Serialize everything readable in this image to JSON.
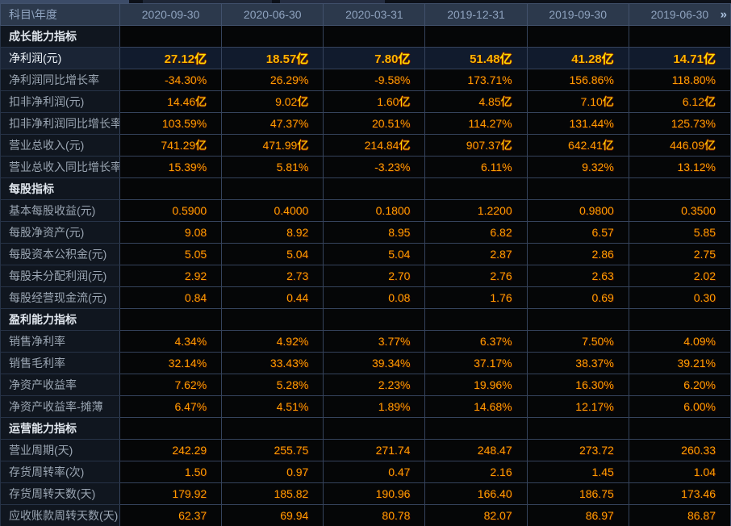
{
  "colors": {
    "header_bg": "#2c394c",
    "value_orange": "#ff9d00",
    "value_bold": "#ffb400",
    "unit_yellow": "#ffdf00",
    "highlight_row_bg": "#111b2d"
  },
  "table": {
    "corner_label": "科目\\年度",
    "more_icon": "»",
    "columns": [
      "2020-09-30",
      "2020-06-30",
      "2020-03-31",
      "2019-12-31",
      "2019-09-30",
      "2019-06-30"
    ],
    "rows": [
      {
        "type": "section",
        "label": "成长能力指标",
        "values": [
          "",
          "",
          "",
          "",
          "",
          ""
        ]
      },
      {
        "type": "data",
        "label": "净利润(元)",
        "highlight": true,
        "values": [
          "27.12亿",
          "18.57亿",
          "7.80亿",
          "51.48亿",
          "41.28亿",
          "14.71亿"
        ]
      },
      {
        "type": "data",
        "label": "净利润同比增长率",
        "values": [
          "-34.30%",
          "26.29%",
          "-9.58%",
          "173.71%",
          "156.86%",
          "118.80%"
        ]
      },
      {
        "type": "data",
        "label": "扣非净利润(元)",
        "values": [
          "14.46亿",
          "9.02亿",
          "1.60亿",
          "4.85亿",
          "7.10亿",
          "6.12亿"
        ]
      },
      {
        "type": "data",
        "label": "扣非净利润同比增长率",
        "values": [
          "103.59%",
          "47.37%",
          "20.51%",
          "114.27%",
          "131.44%",
          "125.73%"
        ]
      },
      {
        "type": "data",
        "label": "营业总收入(元)",
        "values": [
          "741.29亿",
          "471.99亿",
          "214.84亿",
          "907.37亿",
          "642.41亿",
          "446.09亿"
        ]
      },
      {
        "type": "data",
        "label": "营业总收入同比增长率",
        "values": [
          "15.39%",
          "5.81%",
          "-3.23%",
          "6.11%",
          "9.32%",
          "13.12%"
        ]
      },
      {
        "type": "section",
        "label": "每股指标",
        "values": [
          "",
          "",
          "",
          "",
          "",
          ""
        ]
      },
      {
        "type": "data",
        "label": "基本每股收益(元)",
        "values": [
          "0.5900",
          "0.4000",
          "0.1800",
          "1.2200",
          "0.9800",
          "0.3500"
        ]
      },
      {
        "type": "data",
        "label": "每股净资产(元)",
        "values": [
          "9.08",
          "8.92",
          "8.95",
          "6.82",
          "6.57",
          "5.85"
        ]
      },
      {
        "type": "data",
        "label": "每股资本公积金(元)",
        "values": [
          "5.05",
          "5.04",
          "5.04",
          "2.87",
          "2.86",
          "2.75"
        ]
      },
      {
        "type": "data",
        "label": "每股未分配利润(元)",
        "values": [
          "2.92",
          "2.73",
          "2.70",
          "2.76",
          "2.63",
          "2.02"
        ]
      },
      {
        "type": "data",
        "label": "每股经营现金流(元)",
        "values": [
          "0.84",
          "0.44",
          "0.08",
          "1.76",
          "0.69",
          "0.30"
        ]
      },
      {
        "type": "section",
        "label": "盈利能力指标",
        "values": [
          "",
          "",
          "",
          "",
          "",
          ""
        ]
      },
      {
        "type": "data",
        "label": "销售净利率",
        "values": [
          "4.34%",
          "4.92%",
          "3.77%",
          "6.37%",
          "7.50%",
          "4.09%"
        ]
      },
      {
        "type": "data",
        "label": "销售毛利率",
        "values": [
          "32.14%",
          "33.43%",
          "39.34%",
          "37.17%",
          "38.37%",
          "39.21%"
        ]
      },
      {
        "type": "data",
        "label": "净资产收益率",
        "values": [
          "7.62%",
          "5.28%",
          "2.23%",
          "19.96%",
          "16.30%",
          "6.20%"
        ]
      },
      {
        "type": "data",
        "label": "净资产收益率-摊薄",
        "values": [
          "6.47%",
          "4.51%",
          "1.89%",
          "14.68%",
          "12.17%",
          "6.00%"
        ]
      },
      {
        "type": "section",
        "label": "运营能力指标",
        "values": [
          "",
          "",
          "",
          "",
          "",
          ""
        ]
      },
      {
        "type": "data",
        "label": "营业周期(天)",
        "values": [
          "242.29",
          "255.75",
          "271.74",
          "248.47",
          "273.72",
          "260.33"
        ]
      },
      {
        "type": "data",
        "label": "存货周转率(次)",
        "values": [
          "1.50",
          "0.97",
          "0.47",
          "2.16",
          "1.45",
          "1.04"
        ]
      },
      {
        "type": "data",
        "label": "存货周转天数(天)",
        "values": [
          "179.92",
          "185.82",
          "190.96",
          "166.40",
          "186.75",
          "173.46"
        ]
      },
      {
        "type": "data",
        "label": "应收账款周转天数(天)",
        "values": [
          "62.37",
          "69.94",
          "80.78",
          "82.07",
          "86.97",
          "86.87"
        ]
      }
    ]
  }
}
